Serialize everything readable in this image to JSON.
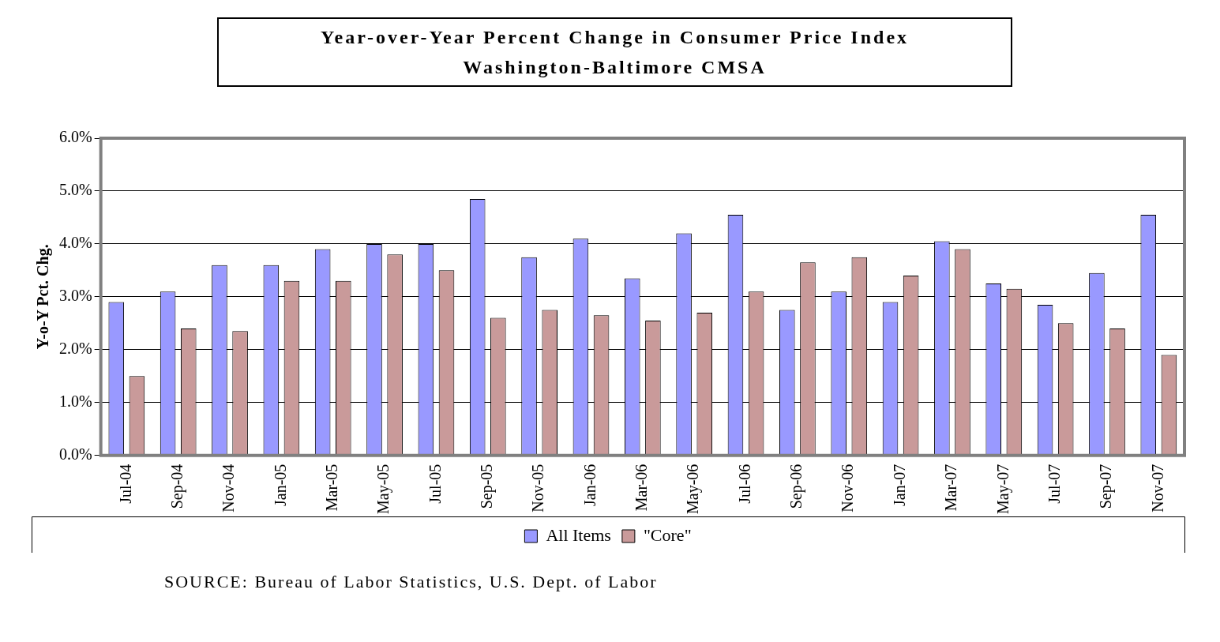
{
  "chart_data": {
    "type": "bar",
    "title": "Year-over-Year Percent Change in Consumer Price Index\nWashington-Baltimore CMSA",
    "ylabel": "Y-o-Y Pct. Chg.",
    "categories": [
      "Jul-04",
      "Sep-04",
      "Nov-04",
      "Jan-05",
      "Mar-05",
      "May-05",
      "Jul-05",
      "Sep-05",
      "Nov-05",
      "Jan-06",
      "Mar-06",
      "May-06",
      "Jul-06",
      "Sep-06",
      "Nov-06",
      "Jan-07",
      "Mar-07",
      "May-07",
      "Jul-07",
      "Sep-07",
      "Nov-07"
    ],
    "series": [
      {
        "name": "All Items",
        "color": "#9999ff",
        "values": [
          2.9,
          3.1,
          3.6,
          3.6,
          3.9,
          4.0,
          4.0,
          4.85,
          3.75,
          4.1,
          3.35,
          4.2,
          4.55,
          2.75,
          3.1,
          2.9,
          4.05,
          3.25,
          2.85,
          3.45,
          4.55
        ]
      },
      {
        "name": "\"Core\"",
        "color": "#c99a9a",
        "values": [
          1.5,
          2.4,
          2.35,
          3.3,
          3.3,
          3.8,
          3.5,
          2.6,
          2.75,
          2.65,
          2.55,
          2.7,
          3.1,
          3.65,
          3.75,
          3.4,
          3.9,
          3.15,
          2.5,
          2.4,
          1.9
        ]
      }
    ],
    "ylim": [
      0,
      6
    ],
    "yticks": [
      {
        "value": 0,
        "label": "0.0%"
      },
      {
        "value": 1,
        "label": "1.0%"
      },
      {
        "value": 2,
        "label": "2.0%"
      },
      {
        "value": 3,
        "label": "3.0%"
      },
      {
        "value": 4,
        "label": "4.0%"
      },
      {
        "value": 5,
        "label": "5.0%"
      },
      {
        "value": 6,
        "label": "6.0%"
      }
    ],
    "grid": "y",
    "legend": "bottom",
    "annotations": [
      "SOURCE:  Bureau of Labor Statistics, U.S. Dept. of Labor"
    ]
  }
}
